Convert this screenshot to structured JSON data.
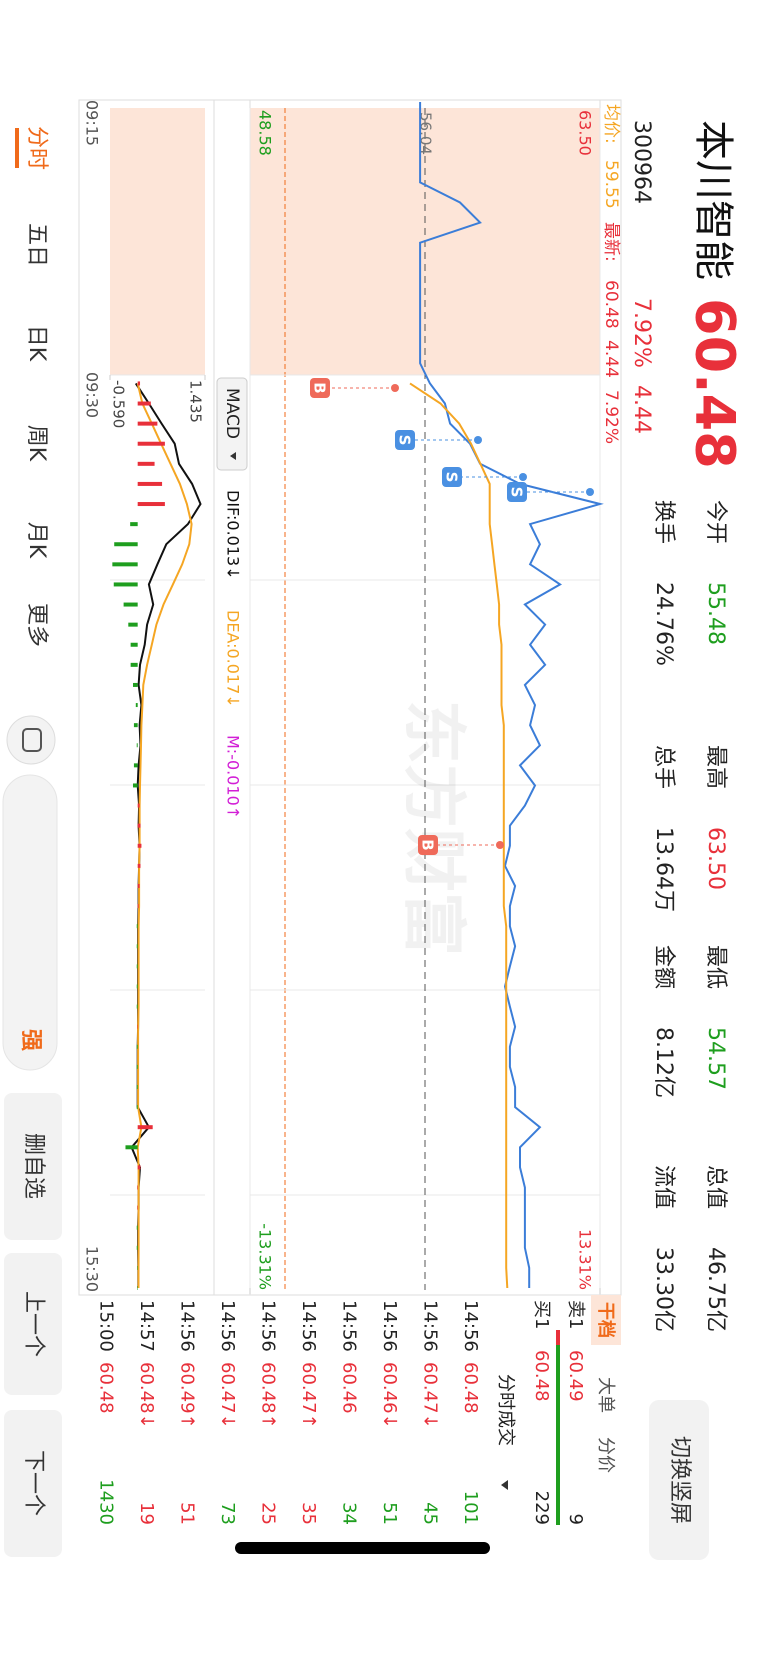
{
  "header": {
    "name": "本川智能",
    "code": "300964",
    "price": "60.48",
    "change_pct": "7.92%",
    "change": "4.44",
    "switch_button": "切换竖屏"
  },
  "stats": [
    {
      "label": "今开",
      "value": "55.48"
    },
    {
      "label": "换手",
      "value": "24.76%"
    },
    {
      "label": "最高",
      "value": "63.50"
    },
    {
      "label": "总手",
      "value": "13.64万"
    },
    {
      "label": "最低",
      "value": "54.57"
    },
    {
      "label": "金额",
      "value": "8.12亿"
    },
    {
      "label": "总值",
      "value": "46.75亿"
    },
    {
      "label": "流值",
      "value": "33.30亿"
    }
  ],
  "info": {
    "avg_label": "均价:",
    "avg": "59.55",
    "last_label": "最新:",
    "last": "60.48",
    "change": "4.44",
    "change_pct": "7.92%"
  },
  "chart_data": [
    {
      "type": "line",
      "ylim": [
        48.58,
        63.5
      ],
      "yticks": [
        {
          "value": 63.5,
          "label": "63.50"
        },
        48.58
      ],
      "y2lim": [
        -13.31,
        13.31
      ],
      "y2ticks": [
        {
          "value": 13.31,
          "label": "13.31%"
        },
        {
          "value": -13.31,
          "label": "-13.31%"
        }
      ],
      "reference": {
        "value": 56.04,
        "label": "56.04"
      },
      "time_labels": [
        "09:15",
        "09:30",
        "15:30"
      ],
      "watermark": "东方财富",
      "signals": [
        "B",
        "S",
        "S",
        "S",
        "B"
      ],
      "grid": true,
      "series": [
        {
          "color": "#3b7dd8",
          "values": [
            55.83,
            55.83,
            55.83,
            55.83,
            55.83,
            57.53,
            58.39,
            55.83,
            55.83,
            55.83,
            55.83,
            55.83,
            55.83,
            55.83,
            56.25,
            56.89,
            57.11,
            57.96,
            58.39,
            60.09,
            63.5,
            60.52,
            60.94,
            60.52,
            61.8,
            60.3,
            61.16,
            60.52,
            61.16,
            60.3,
            60.73,
            60.52,
            60.94,
            60.09,
            60.73,
            60.3,
            59.66,
            59.66,
            59.45,
            59.88,
            59.66,
            59.66,
            59.88,
            59.66,
            59.45,
            59.66,
            59.88,
            59.66,
            59.66,
            59.88,
            59.88,
            60.94,
            60.09,
            60.09,
            60.3,
            60.3,
            60.3,
            60.3,
            60.48,
            60.48
          ]
        },
        {
          "color": "#f5a623",
          "values": [
            null,
            null,
            null,
            null,
            null,
            null,
            null,
            null,
            null,
            null,
            null,
            null,
            null,
            null,
            55.4,
            56.7,
            57.5,
            58.0,
            58.4,
            58.8,
            58.8,
            58.8,
            58.9,
            59.0,
            59.1,
            59.2,
            59.2,
            59.3,
            59.3,
            59.3,
            59.3,
            59.4,
            59.4,
            59.4,
            59.4,
            59.4,
            59.4,
            59.4,
            59.4,
            59.4,
            59.4,
            59.5,
            59.5,
            59.5,
            59.5,
            59.5,
            59.5,
            59.5,
            59.5,
            59.5,
            59.5,
            59.5,
            59.5,
            59.5,
            59.5,
            59.5,
            59.5,
            59.5,
            59.5,
            59.55
          ]
        }
      ]
    },
    {
      "type": "macd",
      "indicator": "MACD",
      "ylim": [
        -0.59,
        1.435
      ],
      "yticks": [
        1.435,
        {
          "value": -0.59,
          "label": "-0.590"
        }
      ],
      "series": [
        {
          "name": "DIF:0.013↓",
          "color": "#111111",
          "values": [
            null,
            null,
            null,
            null,
            null,
            null,
            null,
            null,
            null,
            null,
            null,
            null,
            null,
            null,
            -0.04,
            0.24,
            0.51,
            0.79,
            0.88,
            1.16,
            1.34,
            1.07,
            0.61,
            0.42,
            0.24,
            0.33,
            0.2,
            0.15,
            0.05,
            0.02,
            0.08,
            0.04,
            0.06,
            0.02,
            0.0,
            0.03,
            0.02,
            0.04,
            0.03,
            0.02,
            0.02,
            0.01,
            0.01,
            0.01,
            0.01,
            0.01,
            0.01,
            0.0,
            0.0,
            0.0,
            0.0,
            0.24,
            -0.13,
            0.05,
            0.02,
            0.02,
            0.01,
            0.01,
            0.013,
            0.013
          ]
        },
        {
          "name": "DEA:0.017↓",
          "color": "#f5a623",
          "values": [
            null,
            null,
            null,
            null,
            null,
            null,
            null,
            null,
            null,
            null,
            null,
            null,
            null,
            null,
            0.0,
            0.1,
            0.3,
            0.5,
            0.7,
            0.9,
            1.05,
            1.15,
            1.1,
            0.95,
            0.75,
            0.55,
            0.4,
            0.3,
            0.2,
            0.12,
            0.1,
            0.08,
            0.07,
            0.06,
            0.05,
            0.04,
            0.04,
            0.04,
            0.03,
            0.03,
            0.03,
            0.02,
            0.02,
            0.02,
            0.02,
            0.02,
            0.01,
            0.01,
            0.01,
            0.01,
            0.01,
            0.08,
            0.0,
            0.02,
            0.02,
            0.02,
            0.02,
            0.02,
            0.017,
            0.017
          ]
        },
        {
          "name": "M:-0.010↑",
          "color": "#d21fd6",
          "up_color": "#e8303a",
          "down_color": "#1e9e1e",
          "values": [
            null,
            null,
            null,
            null,
            null,
            null,
            null,
            null,
            null,
            null,
            null,
            null,
            null,
            null,
            0.05,
            0.28,
            0.42,
            0.58,
            0.36,
            0.52,
            0.58,
            -0.16,
            -0.5,
            -0.54,
            -0.51,
            -0.3,
            -0.2,
            -0.15,
            -0.15,
            -0.1,
            -0.04,
            -0.08,
            -0.02,
            -0.08,
            -0.1,
            0.04,
            0.06,
            0.08,
            0.06,
            0.04,
            0.02,
            -0.02,
            -0.02,
            -0.02,
            -0.02,
            -0.02,
            0.0,
            -0.02,
            -0.02,
            -0.02,
            -0.02,
            0.32,
            -0.26,
            0.06,
            0.0,
            0.0,
            -0.02,
            -0.02,
            -0.008,
            -0.01
          ]
        }
      ]
    }
  ],
  "book": {
    "tabs": [
      "干档",
      "大单",
      "分价"
    ],
    "levels": [
      [
        "卖1",
        "60.49",
        "9"
      ],
      [
        "买1",
        "60.48",
        "229"
      ]
    ],
    "trades_title": "分时成交",
    "trades": [
      [
        "14:56",
        "60.48",
        "101",
        "#1e9e1e"
      ],
      [
        "14:56",
        "60.47↓",
        "45",
        "#1e9e1e"
      ],
      [
        "14:56",
        "60.46↓",
        "51",
        "#1e9e1e"
      ],
      [
        "14:56",
        "60.46",
        "34",
        "#1e9e1e"
      ],
      [
        "14:56",
        "60.47↑",
        "35",
        "#e8303a"
      ],
      [
        "14:56",
        "60.48↑",
        "25",
        "#e8303a"
      ],
      [
        "14:56",
        "60.47↓",
        "73",
        "#1e9e1e"
      ],
      [
        "14:56",
        "60.49↑",
        "51",
        "#e8303a"
      ],
      [
        "14:57",
        "60.48↓",
        "19",
        "#e8303a"
      ],
      [
        "15:00",
        "60.48",
        "1430",
        "#1e9e1e"
      ]
    ]
  },
  "tabs": [
    "分时",
    "五日",
    "日K",
    "周K",
    "月K",
    "更多"
  ],
  "badge": "强",
  "actions": [
    "删自选",
    "上一个",
    "下一个"
  ]
}
